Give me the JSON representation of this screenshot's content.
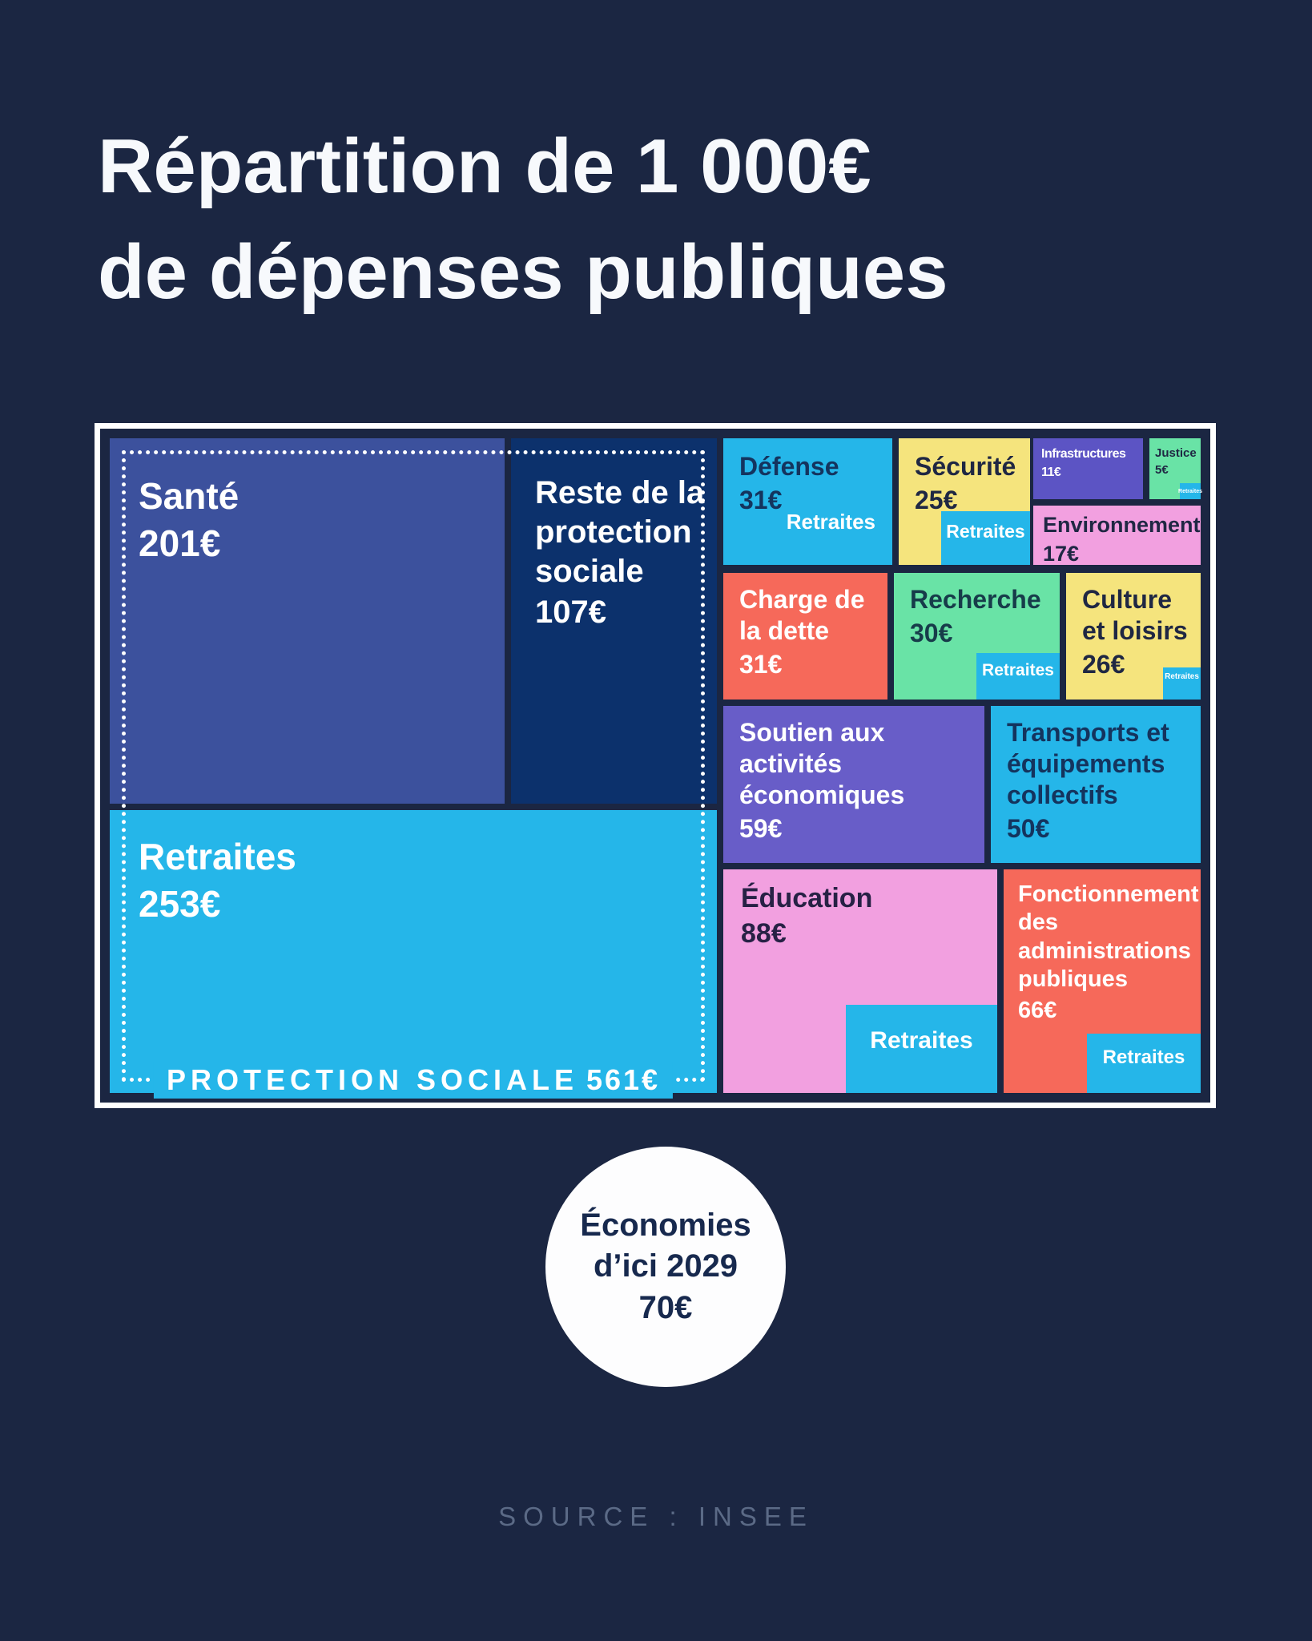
{
  "title": {
    "line1": "Répartition de 1 000€",
    "line2": "de dépenses publiques"
  },
  "treemap": {
    "group": {
      "label": "PROTECTION SOCIALE",
      "value": "561€"
    },
    "blocks": [
      {
        "id": "sante",
        "label": "Santé",
        "value": "201€",
        "color": "#3c519d"
      },
      {
        "id": "reste",
        "label": "Reste de la protection sociale",
        "value": "107€",
        "color": "#0c316c"
      },
      {
        "id": "retraites",
        "label": "Retraites",
        "value": "253€",
        "color": "#25b6e9"
      },
      {
        "id": "defense",
        "label": "Défense",
        "value": "31€",
        "color": "#25b6e9"
      },
      {
        "id": "securite",
        "label": "Sécurité",
        "value": "25€",
        "color": "#f5e47d"
      },
      {
        "id": "infrastructures",
        "label": "Infrastructures",
        "value": "11€",
        "color": "#5c54c4"
      },
      {
        "id": "justice",
        "label": "Justice",
        "value": "5€",
        "color": "#69e3a6"
      },
      {
        "id": "environnement",
        "label": "Environnement",
        "value": "17€",
        "color": "#f2a0e0"
      },
      {
        "id": "charge-dette",
        "label": "Charge de la dette",
        "value": "31€",
        "color": "#f6695a"
      },
      {
        "id": "recherche",
        "label": "Recherche",
        "value": "30€",
        "color": "#69e3a6"
      },
      {
        "id": "culture",
        "label": "Culture et loisirs",
        "value": "26€",
        "color": "#f5e47d"
      },
      {
        "id": "soutien",
        "label": "Soutien aux activités économiques",
        "value": "59€",
        "color": "#685dc8"
      },
      {
        "id": "transports",
        "label": "Transports et équipements collectifs",
        "value": "50€",
        "color": "#25b6e9"
      },
      {
        "id": "education",
        "label": "Éducation",
        "value": "88€",
        "color": "#f2a0e0"
      },
      {
        "id": "fonctionnement",
        "label": "Fonctionnement des administrations publiques",
        "value": "66€",
        "color": "#f6695a"
      }
    ],
    "chips": [
      {
        "host": "defense",
        "label": "Retraites"
      },
      {
        "host": "securite",
        "label": "Retraites"
      },
      {
        "host": "justice",
        "label": "Retraites"
      },
      {
        "host": "recherche",
        "label": "Retraites"
      },
      {
        "host": "culture",
        "label": "Retraites"
      },
      {
        "host": "education",
        "label": "Retraites"
      },
      {
        "host": "fonctionnement",
        "label": "Retraites"
      }
    ]
  },
  "badge": {
    "line1": "Économies",
    "line2": "d’ici 2029",
    "value": "70€"
  },
  "source": "SOURCE : INSEE",
  "palette": {
    "background": "#1b2642",
    "cyan": "#25b6e9",
    "royal_blue": "#3c519d",
    "dark_blue": "#0c316c",
    "yellow": "#f5e47d",
    "purple": "#5c54c4",
    "purple_light": "#685dc8",
    "mint": "#69e3a6",
    "pink": "#f2a0e0",
    "coral": "#f6695a",
    "white": "#ffffff",
    "muted_text": "#5b6a86"
  },
  "chart_data": {
    "type": "treemap",
    "title": "Répartition de 1 000€ de dépenses publiques",
    "total": 1000,
    "unit": "€",
    "groups": [
      {
        "name": "Protection sociale",
        "value": 561,
        "children": [
          {
            "name": "Santé",
            "value": 201
          },
          {
            "name": "Retraites",
            "value": 253
          },
          {
            "name": "Reste de la protection sociale",
            "value": 107
          }
        ]
      },
      {
        "name": "Défense",
        "value": 31
      },
      {
        "name": "Sécurité",
        "value": 25
      },
      {
        "name": "Infrastructures",
        "value": 11
      },
      {
        "name": "Justice",
        "value": 5
      },
      {
        "name": "Environnement",
        "value": 17
      },
      {
        "name": "Charge de la dette",
        "value": 31
      },
      {
        "name": "Recherche",
        "value": 30
      },
      {
        "name": "Culture et loisirs",
        "value": 26
      },
      {
        "name": "Soutien aux activités économiques",
        "value": 59
      },
      {
        "name": "Transports et équipements collectifs",
        "value": 50
      },
      {
        "name": "Éducation",
        "value": 88
      },
      {
        "name": "Fonctionnement des administrations publiques",
        "value": 66
      }
    ],
    "annotation": {
      "label": "Économies d’ici 2029",
      "value": 70
    },
    "source": "INSEE"
  }
}
